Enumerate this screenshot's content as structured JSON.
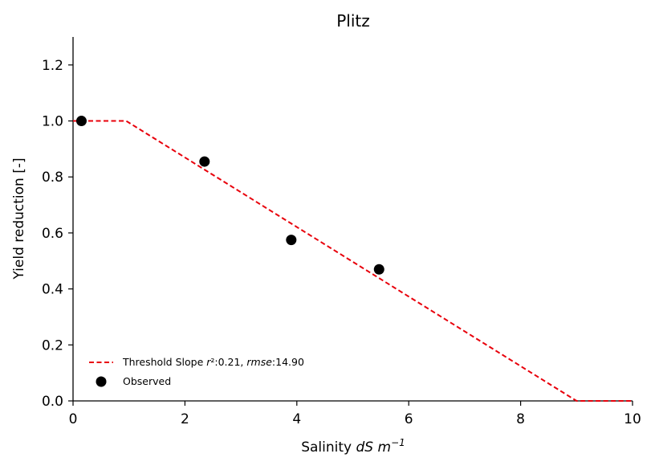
{
  "chart_data": {
    "type": "line",
    "title": "Plitz",
    "xlabel": "Salinity dS m⁻¹",
    "xlabel_parts": {
      "prefix": "Salinity ",
      "italic": "dS m",
      "superscript": "−1"
    },
    "ylabel": "Yield reduction [-]",
    "xlim": [
      0,
      10
    ],
    "ylim": [
      0,
      1.3
    ],
    "xticks": [
      0,
      2,
      4,
      6,
      8,
      10
    ],
    "xtick_labels": [
      "0",
      "2",
      "4",
      "6",
      "8",
      "10"
    ],
    "yticks": [
      0.0,
      0.2,
      0.4,
      0.6,
      0.8,
      1.0,
      1.2
    ],
    "ytick_labels": [
      "0.0",
      "0.2",
      "0.4",
      "0.6",
      "0.8",
      "1.0",
      "1.2"
    ],
    "grid": false,
    "legend_position": "lower-left",
    "series": [
      {
        "name": "Threshold Slope r²:0.21, rmse:14.90",
        "name_parts": {
          "prefix": "Threshold Slope ",
          "r_italic": "r",
          "r2_value": "²:0.21, ",
          "rmse_italic": "rmse",
          "rmse_value": ":14.90"
        },
        "kind": "line",
        "style": "dashed",
        "color": "#e8000b",
        "x": [
          0,
          0.95,
          9.0,
          10
        ],
        "y": [
          1.0,
          1.0,
          0.0,
          0.0
        ]
      },
      {
        "name": "Observed",
        "kind": "scatter",
        "color": "#000000",
        "x": [
          0.15,
          2.35,
          3.9,
          5.47
        ],
        "y": [
          1.0,
          0.855,
          0.575,
          0.47
        ]
      }
    ]
  }
}
